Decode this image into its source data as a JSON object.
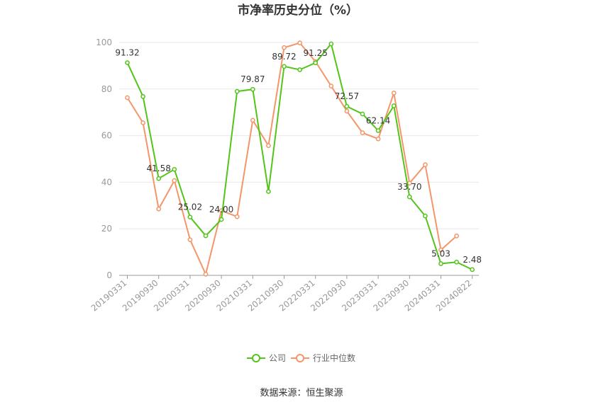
{
  "chart_data": {
    "type": "line",
    "title": "市净率历史分位（%）",
    "x": [
      "20190331",
      "20190630",
      "20190930",
      "20191231",
      "20200331",
      "20200630",
      "20200930",
      "20201231",
      "20210331",
      "20210630",
      "20210930",
      "20211231",
      "20220331",
      "20220630",
      "20220930",
      "20221231",
      "20230331",
      "20230630",
      "20230930",
      "20231231",
      "20240331",
      "20240630",
      "20240822"
    ],
    "x_tick_labels": [
      "20190331",
      "20190930",
      "20200331",
      "20200930",
      "20210331",
      "20210930",
      "20220331",
      "20220930",
      "20230331",
      "20230930",
      "20240331",
      "20240822"
    ],
    "ylim": [
      0,
      100
    ],
    "y_ticks": [
      0,
      20,
      40,
      60,
      80,
      100
    ],
    "grid": true,
    "legend_position": "bottom",
    "series": [
      {
        "name": "公司",
        "color": "#52c41a",
        "values": [
          91.32,
          76.8,
          41.58,
          45.5,
          25.02,
          17.0,
          24.0,
          79.0,
          79.87,
          36.0,
          89.72,
          88.3,
          91.25,
          99.4,
          72.57,
          69.3,
          62.14,
          72.8,
          33.7,
          25.5,
          5.03,
          5.7,
          2.48
        ],
        "labels": {
          "0": "91.32",
          "2": "41.58",
          "4": "25.02",
          "6": "24.00",
          "8": "79.87",
          "10": "89.72",
          "12": "91.25",
          "14": "72.57",
          "16": "62.14",
          "18": "33.70",
          "20": "5.03",
          "22": "2.48"
        }
      },
      {
        "name": "行业中位数",
        "color": "#f4956a",
        "values": [
          76.3,
          65.5,
          28.5,
          40.7,
          15.3,
          0.5,
          27.8,
          25.2,
          66.6,
          55.7,
          97.8,
          99.8,
          91.8,
          81.3,
          70.5,
          61.2,
          58.6,
          78.3,
          39.6,
          47.5,
          10.9,
          16.9,
          null
        ]
      }
    ]
  },
  "source_text": "数据来源：恒生聚源"
}
